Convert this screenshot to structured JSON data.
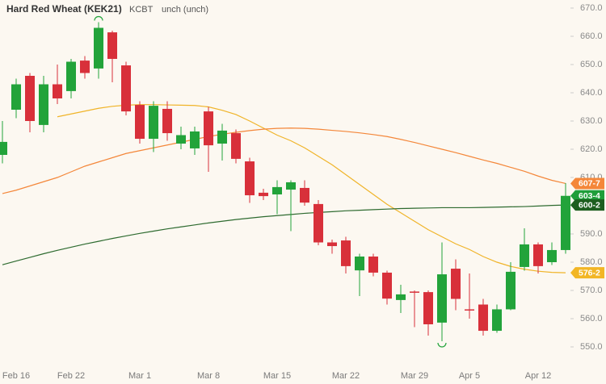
{
  "header": {
    "title": "Hard Red Wheat (KEK21)",
    "exchange": "KCBT",
    "change": "unch (unch)"
  },
  "chart_data": {
    "type": "candlestick",
    "categories": [
      null,
      "Feb 16",
      null,
      null,
      null,
      "Feb 22",
      null,
      null,
      null,
      null,
      "Mar 1",
      null,
      null,
      null,
      null,
      "Mar 8",
      null,
      null,
      null,
      null,
      "Mar 15",
      null,
      null,
      null,
      null,
      "Mar 22",
      null,
      null,
      null,
      null,
      "Mar 29",
      null,
      null,
      null,
      "Apr 5",
      null,
      null,
      null,
      null,
      "Apr 12",
      null,
      null
    ],
    "open": [
      618,
      634,
      646,
      628.6,
      643,
      640.6,
      651.4,
      648.6,
      661.4,
      649.7,
      635.7,
      623.7,
      634.3,
      622,
      620.3,
      633.4,
      622,
      625.7,
      615.7,
      604.6,
      604,
      605.7,
      606.3,
      600.6,
      587,
      587.7,
      577.1,
      582,
      576.3,
      566.6,
      569.6,
      569.4,
      558.6,
      577.7,
      563.3,
      565,
      555.7,
      563.3,
      578.3,
      586.3,
      580,
      584.3
    ],
    "high": [
      630,
      645,
      647,
      646,
      650,
      652,
      653,
      665,
      662,
      651,
      637,
      637,
      637,
      628,
      628,
      635,
      629,
      627,
      617,
      606,
      609,
      609,
      609,
      602,
      588,
      589,
      583,
      583,
      577,
      572,
      570,
      570,
      587,
      581,
      576,
      567,
      565,
      580,
      592,
      587,
      587,
      608
    ],
    "low": [
      615,
      631,
      626,
      626,
      636,
      638,
      645,
      645,
      643.7,
      632,
      622,
      619,
      623,
      620,
      618,
      612,
      616,
      615,
      601,
      602,
      597,
      591,
      600,
      586,
      583,
      576,
      568,
      575,
      565,
      562,
      557,
      554,
      552,
      563,
      560,
      554,
      555,
      563,
      577,
      576,
      579,
      583
    ],
    "close": [
      622.6,
      643,
      630,
      643,
      638,
      651,
      647,
      663,
      652,
      633.4,
      623.7,
      635.4,
      625.7,
      625,
      626.3,
      621.4,
      626.6,
      616.6,
      603.7,
      603.4,
      606.6,
      608.3,
      601.1,
      587,
      585.7,
      578.6,
      582,
      576.3,
      567.1,
      568.6,
      569.4,
      558,
      575.7,
      567,
      563.1,
      555.7,
      563.3,
      576.6,
      586.3,
      578.6,
      584.3,
      603.5
    ],
    "up_color": "#22a33a",
    "down_color": "#d8303a",
    "lines": [
      {
        "color": "#f0b429",
        "values": [
          null,
          null,
          null,
          null,
          631.5,
          632.5,
          633.5,
          634.5,
          635.2,
          635.6,
          635.8,
          635.8,
          635.7,
          635.6,
          635.5,
          635.0,
          633.8,
          632.3,
          630.0,
          627.5,
          625.0,
          623.0,
          620.5,
          617.5,
          614.5,
          611.0,
          607.5,
          604.0,
          600.5,
          597.5,
          594.5,
          591.5,
          589.0,
          586.5,
          584.5,
          582.0,
          580.0,
          578.5,
          577.5,
          576.8,
          576.4,
          576.25
        ]
      },
      {
        "color": "#f4873a",
        "values": [
          604.3,
          605.5,
          607,
          608.5,
          610,
          612,
          614,
          615.5,
          617,
          618.5,
          619.5,
          620.5,
          621.5,
          622.5,
          623.5,
          624.5,
          625.3,
          626,
          626.6,
          627.1,
          627.4,
          627.5,
          627.4,
          627.1,
          626.7,
          626.3,
          625.8,
          625.2,
          624.5,
          623.5,
          622.4,
          621.2,
          620,
          618.8,
          617.5,
          616.2,
          615,
          613.6,
          612.2,
          610.5,
          609,
          607.875
        ]
      },
      {
        "color": "#2e6b30",
        "values": [
          579.1,
          580.4,
          581.7,
          583,
          584.2,
          585.3,
          586.4,
          587.4,
          588.4,
          589.3,
          590.2,
          591,
          591.8,
          592.5,
          593.2,
          593.9,
          594.5,
          595.1,
          595.6,
          596.1,
          596.5,
          596.9,
          597.3,
          597.6,
          597.9,
          598.2,
          598.4,
          598.6,
          598.8,
          599,
          599.1,
          599.2,
          599.3,
          599.3,
          599.3,
          599.4,
          599.5,
          599.6,
          599.7,
          599.9,
          600.1,
          600.25
        ]
      }
    ],
    "price_badges": [
      {
        "value": 607.875,
        "label": "607-7",
        "color": "#f4873a"
      },
      {
        "value": 603.5,
        "label": "603-4",
        "color": "#1f9e3a"
      },
      {
        "value": 600.25,
        "label": "600-2",
        "color": "#1d5e1f"
      },
      {
        "value": 576.25,
        "label": "576-2",
        "color": "#f2b625"
      }
    ],
    "ylim": [
      550,
      670
    ],
    "yticks": [
      {
        "value": 550,
        "label": "550.0"
      },
      {
        "value": 560,
        "label": "560.0"
      },
      {
        "value": 570,
        "label": "570.0"
      },
      {
        "value": 580,
        "label": "580.0"
      },
      {
        "value": 590,
        "label": "590.0"
      },
      {
        "value": 600,
        "label": "600.0"
      },
      {
        "value": 610,
        "label": "610.0"
      },
      {
        "value": 620,
        "label": "620.0"
      },
      {
        "value": 630,
        "label": "630.0"
      },
      {
        "value": 640,
        "label": "640.0"
      },
      {
        "value": 650,
        "label": "650.0"
      },
      {
        "value": 660,
        "label": "660.0"
      },
      {
        "value": 670,
        "label": "670.0"
      }
    ]
  }
}
